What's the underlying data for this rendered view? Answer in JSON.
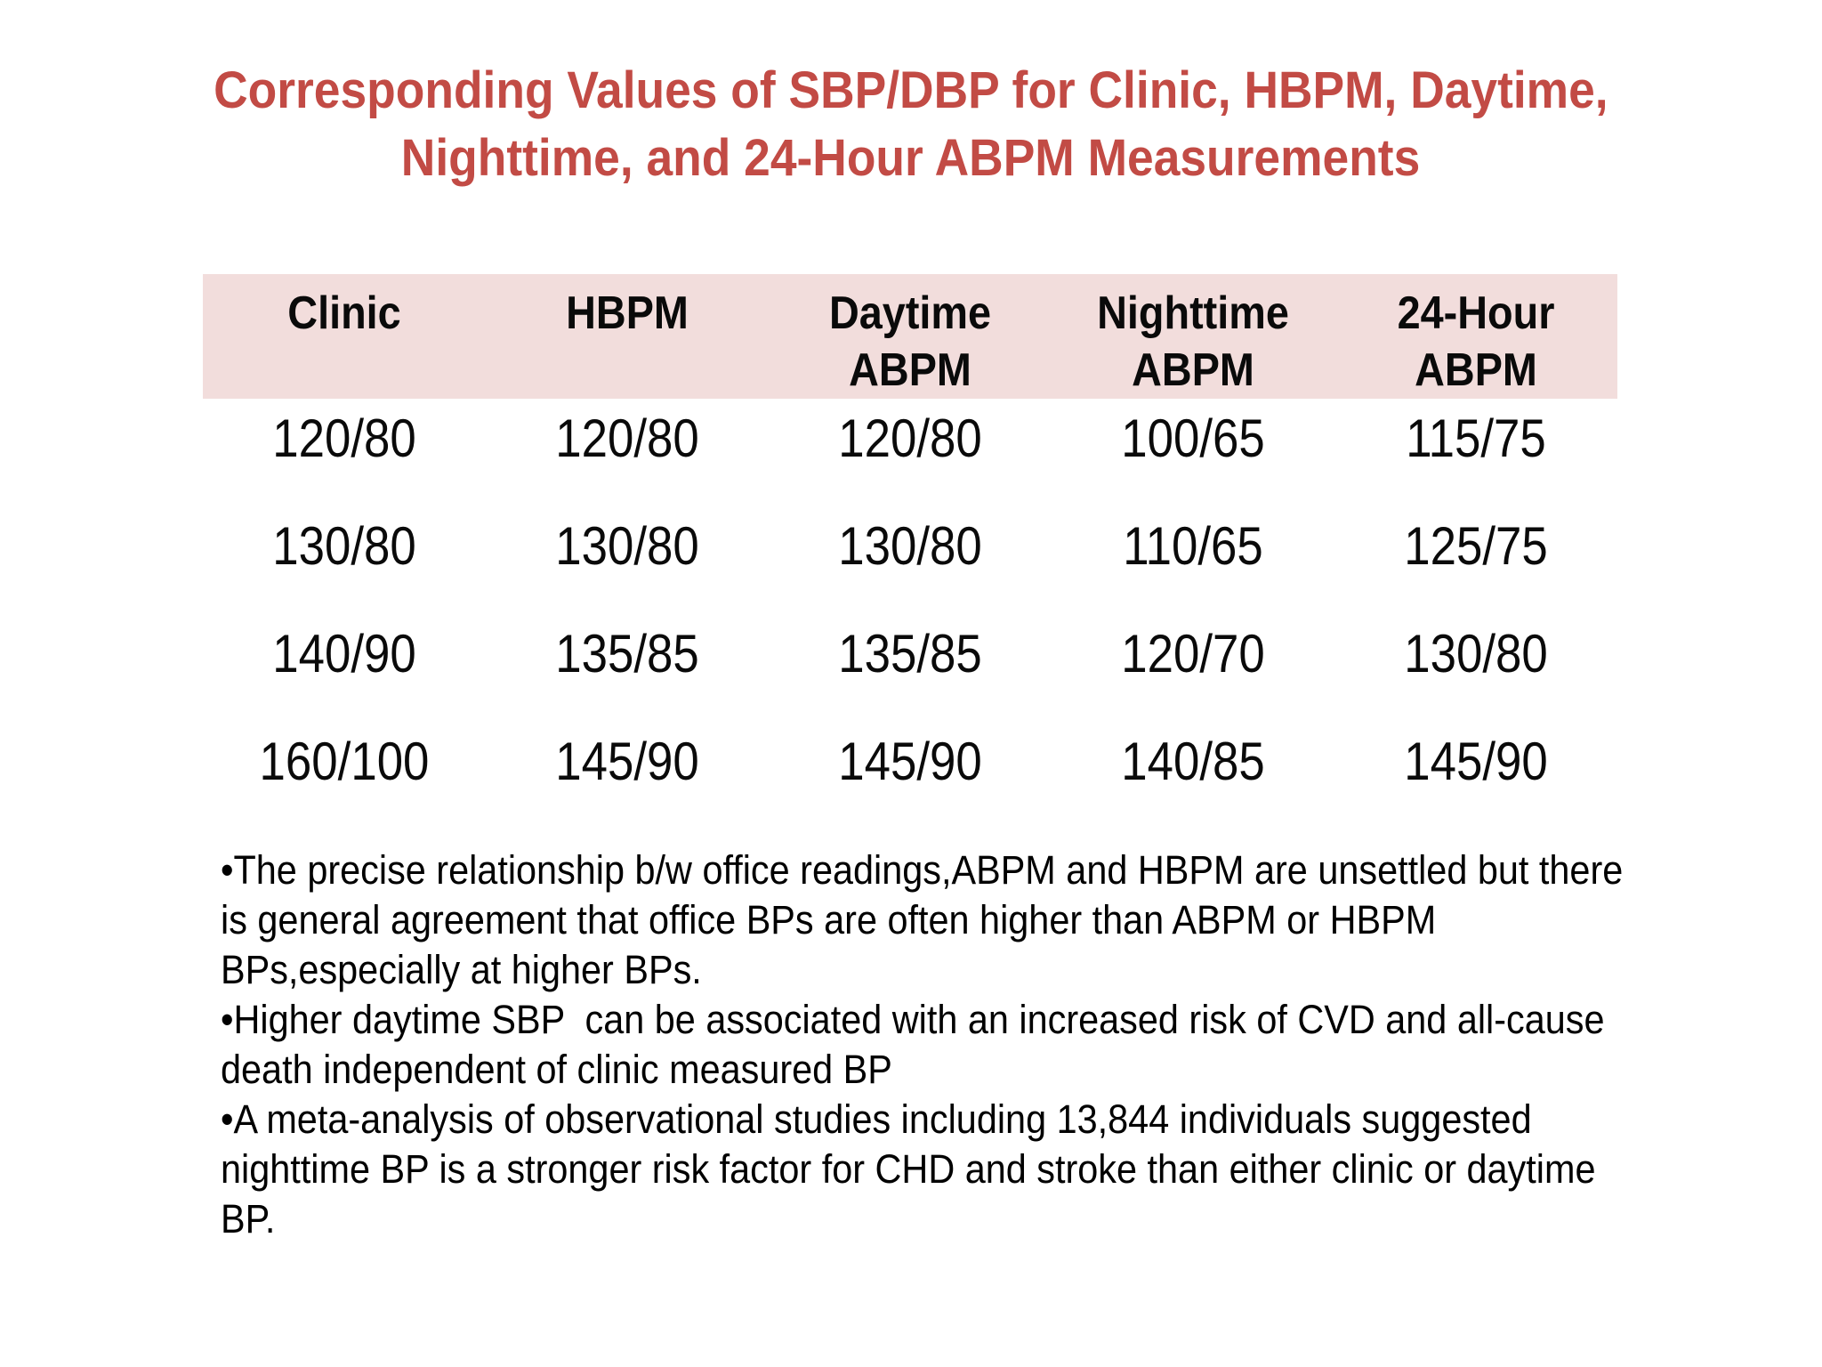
{
  "slide": {
    "title": {
      "line1": "Corresponding Values of SBP/DBP for Clinic, HBPM, Daytime,",
      "line2": "Nighttime, and 24-Hour ABPM Measurements",
      "color": "#c24b45"
    },
    "table": {
      "header_bg": "#f2dddc",
      "headers": [
        "Clinic",
        "HBPM",
        "Daytime\nABPM",
        "Nighttime\nABPM",
        "24-Hour\nABPM"
      ],
      "rows": [
        [
          "120/80",
          "120/80",
          "120/80",
          "100/65",
          "115/75"
        ],
        [
          "130/80",
          "130/80",
          "130/80",
          "110/65",
          "125/75"
        ],
        [
          "140/90",
          "135/85",
          "135/85",
          "120/70",
          "130/80"
        ],
        [
          "160/100",
          "145/90",
          "145/90",
          "140/85",
          "145/90"
        ]
      ]
    },
    "bullets": [
      "•The precise relationship b/w office readings,ABPM and HBPM are unsettled but there is general agreement that office BPs are often higher than ABPM or HBPM BPs,especially at higher BPs.",
      "•Higher daytime SBP  can be associated with an increased risk of CVD and all-cause death independent of clinic measured BP",
      "•A meta-analysis of observational studies including 13,844 individuals suggested nighttime BP is a stronger risk factor for CHD and stroke than either clinic or daytime BP."
    ]
  },
  "chart_data": {
    "type": "table",
    "title": "Corresponding Values of SBP/DBP for Clinic, HBPM, Daytime, Nighttime, and 24-Hour ABPM Measurements",
    "columns": [
      "Clinic",
      "HBPM",
      "Daytime ABPM",
      "Nighttime ABPM",
      "24-Hour ABPM"
    ],
    "rows": [
      [
        "120/80",
        "120/80",
        "120/80",
        "100/65",
        "115/75"
      ],
      [
        "130/80",
        "130/80",
        "130/80",
        "110/65",
        "125/75"
      ],
      [
        "140/90",
        "135/85",
        "135/85",
        "120/70",
        "130/80"
      ],
      [
        "160/100",
        "145/90",
        "145/90",
        "140/85",
        "145/90"
      ]
    ]
  }
}
